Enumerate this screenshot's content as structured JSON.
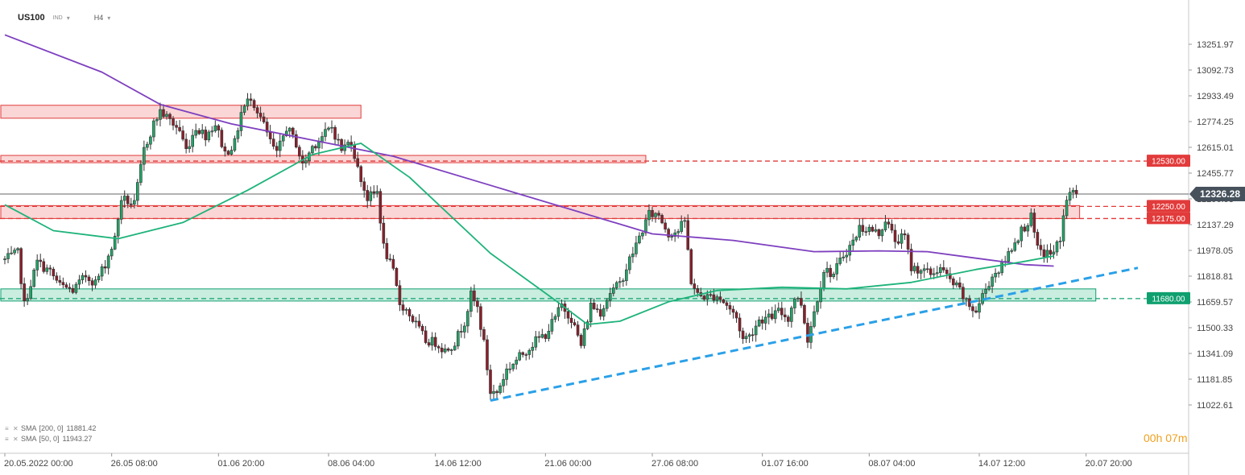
{
  "header": {
    "symbol": "US100",
    "market": "IND",
    "timeframe": "H4"
  },
  "timer": {
    "hours": "00",
    "hours_unit": "h",
    "minutes": "07",
    "minutes_unit": "m",
    "color": "#f0a020"
  },
  "legend": [
    {
      "name": "SMA",
      "params": "[200, 0]",
      "value": "11881.42",
      "color": "#7e3fbf"
    },
    {
      "name": "SMA",
      "params": "[50, 0]",
      "value": "11943.27",
      "color": "#1db37a"
    }
  ],
  "colors": {
    "up_candle": "#22a568",
    "down_candle": "#8b1f2b",
    "resistance": "#e23b3b",
    "support": "#10a070",
    "trendline": "#2aa0e8",
    "price_tag": "#46515c"
  },
  "chart_data": {
    "type": "candlestick",
    "symbol": "US100",
    "timeframe": "H4",
    "y_axis": {
      "ticks": [
        13251.97,
        13092.73,
        12933.49,
        12774.25,
        12615.01,
        12455.77,
        12296.53,
        12137.29,
        11978.05,
        11818.81,
        11659.57,
        11500.33,
        11341.09,
        11181.85,
        11022.61
      ],
      "tick_labels": [
        "13251.97",
        "13092.73",
        "12933.49",
        "12774.25",
        "12615.01",
        "12455.77",
        "12296.53",
        "12137.29",
        "11978.05",
        "11818.81",
        "11659.57",
        "11500.33",
        "11341.09",
        "11181.85",
        "11022.61"
      ],
      "range": [
        11010,
        13340
      ]
    },
    "x_axis": {
      "ticks": [
        "20.05.2022  00:00",
        "26.05  08:00",
        "01.06  20:00",
        "08.06  04:00",
        "14.06  12:00",
        "21.06  00:00",
        "27.06  08:00",
        "01.07  16:00",
        "08.07  04:00",
        "14.07  12:00",
        "20.07  20:00"
      ],
      "tick_bar_index": [
        0,
        33,
        66,
        100,
        133,
        167,
        200,
        234,
        267,
        301,
        334
      ]
    },
    "bars_count": 336,
    "last_price": 12326.28,
    "last_price_label": "12326.28",
    "anchors": [
      {
        "i": 0,
        "p": 11920
      },
      {
        "i": 4,
        "p": 11960
      },
      {
        "i": 6,
        "p": 11640
      },
      {
        "i": 10,
        "p": 11905
      },
      {
        "i": 14,
        "p": 11845
      },
      {
        "i": 17,
        "p": 11760
      },
      {
        "i": 21,
        "p": 11730
      },
      {
        "i": 25,
        "p": 11820
      },
      {
        "i": 28,
        "p": 11780
      },
      {
        "i": 31,
        "p": 11895
      },
      {
        "i": 34,
        "p": 12050
      },
      {
        "i": 36,
        "p": 12300
      },
      {
        "i": 40,
        "p": 12260
      },
      {
        "i": 43,
        "p": 12600
      },
      {
        "i": 46,
        "p": 12760
      },
      {
        "i": 48,
        "p": 12840
      },
      {
        "i": 51,
        "p": 12780
      },
      {
        "i": 54,
        "p": 12720
      },
      {
        "i": 56,
        "p": 12600
      },
      {
        "i": 59,
        "p": 12740
      },
      {
        "i": 62,
        "p": 12690
      },
      {
        "i": 65,
        "p": 12760
      },
      {
        "i": 68,
        "p": 12580
      },
      {
        "i": 71,
        "p": 12640
      },
      {
        "i": 73,
        "p": 12830
      },
      {
        "i": 76,
        "p": 12930
      },
      {
        "i": 79,
        "p": 12800
      },
      {
        "i": 82,
        "p": 12650
      },
      {
        "i": 84,
        "p": 12570
      },
      {
        "i": 87,
        "p": 12740
      },
      {
        "i": 90,
        "p": 12640
      },
      {
        "i": 92,
        "p": 12500
      },
      {
        "i": 95,
        "p": 12620
      },
      {
        "i": 98,
        "p": 12680
      },
      {
        "i": 101,
        "p": 12740
      },
      {
        "i": 104,
        "p": 12600
      },
      {
        "i": 107,
        "p": 12660
      },
      {
        "i": 109,
        "p": 12480
      },
      {
        "i": 112,
        "p": 12300
      },
      {
        "i": 115,
        "p": 12340
      },
      {
        "i": 117,
        "p": 12000
      },
      {
        "i": 120,
        "p": 11840
      },
      {
        "i": 122,
        "p": 11650
      },
      {
        "i": 124,
        "p": 11610
      },
      {
        "i": 127,
        "p": 11520
      },
      {
        "i": 130,
        "p": 11420
      },
      {
        "i": 133,
        "p": 11410
      },
      {
        "i": 136,
        "p": 11360
      },
      {
        "i": 139,
        "p": 11410
      },
      {
        "i": 142,
        "p": 11540
      },
      {
        "i": 144,
        "p": 11700
      },
      {
        "i": 146,
        "p": 11620
      },
      {
        "i": 148,
        "p": 11400
      },
      {
        "i": 150,
        "p": 11100
      },
      {
        "i": 152,
        "p": 11100
      },
      {
        "i": 155,
        "p": 11240
      },
      {
        "i": 158,
        "p": 11300
      },
      {
        "i": 161,
        "p": 11360
      },
      {
        "i": 164,
        "p": 11420
      },
      {
        "i": 167,
        "p": 11460
      },
      {
        "i": 170,
        "p": 11560
      },
      {
        "i": 172,
        "p": 11640
      },
      {
        "i": 175,
        "p": 11560
      },
      {
        "i": 178,
        "p": 11390
      },
      {
        "i": 181,
        "p": 11640
      },
      {
        "i": 184,
        "p": 11600
      },
      {
        "i": 187,
        "p": 11720
      },
      {
        "i": 190,
        "p": 11770
      },
      {
        "i": 193,
        "p": 11920
      },
      {
        "i": 196,
        "p": 12060
      },
      {
        "i": 199,
        "p": 12200
      },
      {
        "i": 202,
        "p": 12200
      },
      {
        "i": 205,
        "p": 12080
      },
      {
        "i": 208,
        "p": 12100
      },
      {
        "i": 210,
        "p": 12160
      },
      {
        "i": 212,
        "p": 11790
      },
      {
        "i": 214,
        "p": 11700
      },
      {
        "i": 217,
        "p": 11690
      },
      {
        "i": 220,
        "p": 11700
      },
      {
        "i": 223,
        "p": 11640
      },
      {
        "i": 226,
        "p": 11560
      },
      {
        "i": 228,
        "p": 11430
      },
      {
        "i": 230,
        "p": 11450
      },
      {
        "i": 233,
        "p": 11550
      },
      {
        "i": 236,
        "p": 11560
      },
      {
        "i": 239,
        "p": 11600
      },
      {
        "i": 242,
        "p": 11560
      },
      {
        "i": 244,
        "p": 11690
      },
      {
        "i": 246,
        "p": 11650
      },
      {
        "i": 248,
        "p": 11430
      },
      {
        "i": 250,
        "p": 11600
      },
      {
        "i": 253,
        "p": 11860
      },
      {
        "i": 256,
        "p": 11830
      },
      {
        "i": 259,
        "p": 11950
      },
      {
        "i": 262,
        "p": 12030
      },
      {
        "i": 264,
        "p": 12120
      },
      {
        "i": 267,
        "p": 12110
      },
      {
        "i": 270,
        "p": 12080
      },
      {
        "i": 272,
        "p": 12170
      },
      {
        "i": 275,
        "p": 12040
      },
      {
        "i": 278,
        "p": 12060
      },
      {
        "i": 280,
        "p": 11870
      },
      {
        "i": 283,
        "p": 11860
      },
      {
        "i": 286,
        "p": 11830
      },
      {
        "i": 289,
        "p": 11870
      },
      {
        "i": 292,
        "p": 11790
      },
      {
        "i": 295,
        "p": 11730
      },
      {
        "i": 297,
        "p": 11650
      },
      {
        "i": 300,
        "p": 11600
      },
      {
        "i": 302,
        "p": 11700
      },
      {
        "i": 305,
        "p": 11820
      },
      {
        "i": 308,
        "p": 11880
      },
      {
        "i": 311,
        "p": 12000
      },
      {
        "i": 314,
        "p": 12100
      },
      {
        "i": 317,
        "p": 12180
      },
      {
        "i": 319,
        "p": 11980
      },
      {
        "i": 321,
        "p": 11960
      },
      {
        "i": 324,
        "p": 11960
      },
      {
        "i": 326,
        "p": 12060
      },
      {
        "i": 328,
        "p": 12300
      },
      {
        "i": 330,
        "p": 12340
      },
      {
        "i": 331,
        "p": 12326
      }
    ],
    "sma_200": {
      "name": "SMA [200, 0]",
      "color": "#7e3fbf",
      "points": [
        {
          "i": 0,
          "p": 13310
        },
        {
          "i": 30,
          "p": 13080
        },
        {
          "i": 48,
          "p": 12880
        },
        {
          "i": 70,
          "p": 12760
        },
        {
          "i": 95,
          "p": 12660
        },
        {
          "i": 120,
          "p": 12560
        },
        {
          "i": 150,
          "p": 12380
        },
        {
          "i": 180,
          "p": 12200
        },
        {
          "i": 200,
          "p": 12080
        },
        {
          "i": 225,
          "p": 12040
        },
        {
          "i": 250,
          "p": 11970
        },
        {
          "i": 270,
          "p": 11975
        },
        {
          "i": 285,
          "p": 11970
        },
        {
          "i": 300,
          "p": 11930
        },
        {
          "i": 315,
          "p": 11890
        },
        {
          "i": 324,
          "p": 11881
        }
      ]
    },
    "sma_50": {
      "name": "SMA [50, 0]",
      "color": "#1db37a",
      "points": [
        {
          "i": 0,
          "p": 12260
        },
        {
          "i": 15,
          "p": 12100
        },
        {
          "i": 35,
          "p": 12050
        },
        {
          "i": 55,
          "p": 12150
        },
        {
          "i": 75,
          "p": 12350
        },
        {
          "i": 95,
          "p": 12570
        },
        {
          "i": 110,
          "p": 12640
        },
        {
          "i": 125,
          "p": 12430
        },
        {
          "i": 150,
          "p": 11960
        },
        {
          "i": 170,
          "p": 11670
        },
        {
          "i": 180,
          "p": 11520
        },
        {
          "i": 190,
          "p": 11540
        },
        {
          "i": 205,
          "p": 11660
        },
        {
          "i": 220,
          "p": 11730
        },
        {
          "i": 240,
          "p": 11750
        },
        {
          "i": 260,
          "p": 11740
        },
        {
          "i": 280,
          "p": 11780
        },
        {
          "i": 300,
          "p": 11860
        },
        {
          "i": 315,
          "p": 11910
        },
        {
          "i": 324,
          "p": 11943
        }
      ]
    },
    "levels": [
      {
        "price": 12530,
        "label": "12530.00",
        "type": "resistance"
      },
      {
        "price": 12250,
        "label": "12250.00",
        "type": "resistance"
      },
      {
        "price": 12175,
        "label": "12175.00",
        "type": "resistance"
      },
      {
        "price": 11680,
        "label": "11680.00",
        "type": "support"
      }
    ],
    "zones": [
      {
        "type": "resistance",
        "from_i": 0,
        "to_i": 110,
        "low": 12795,
        "high": 12875
      },
      {
        "type": "resistance",
        "from_i": 0,
        "to_i": 198,
        "low": 12520,
        "high": 12565
      },
      {
        "type": "resistance",
        "from_i": 0,
        "to_i": 332,
        "low": 12175,
        "high": 12255
      },
      {
        "type": "support",
        "from_i": 0,
        "to_i": 337,
        "low": 11665,
        "high": 11740
      }
    ],
    "trendline": {
      "from": {
        "i": 150,
        "p": 11050
      },
      "to": {
        "i": 350,
        "p": 11870
      },
      "style": "dashed"
    }
  }
}
